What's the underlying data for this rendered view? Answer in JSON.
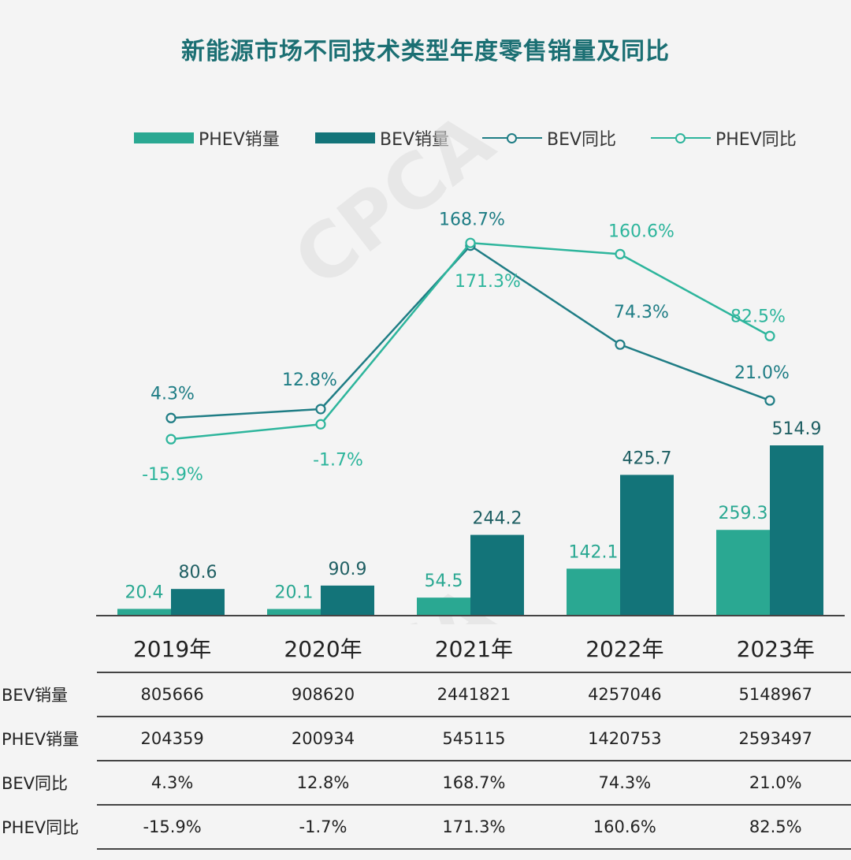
{
  "chart_data": {
    "type": "bar",
    "title": "新能源市场不同技术类型年度零售销量及同比",
    "categories": [
      "2019年",
      "2020年",
      "2021年",
      "2022年",
      "2023年"
    ],
    "series": [
      {
        "name": "PHEV销量",
        "kind": "bar",
        "color": "#2aa892",
        "values": [
          20.4,
          20.1,
          54.5,
          142.1,
          259.3
        ],
        "labels": [
          "20.4",
          "20.1",
          "54.5",
          "142.1",
          "259.3"
        ]
      },
      {
        "name": "BEV销量",
        "kind": "bar",
        "color": "#137479",
        "values": [
          80.6,
          90.9,
          244.2,
          425.7,
          514.9
        ],
        "labels": [
          "80.6",
          "90.9",
          "244.2",
          "425.7",
          "514.9"
        ]
      },
      {
        "name": "BEV同比",
        "kind": "line",
        "color": "#1f7d85",
        "values": [
          4.3,
          12.8,
          168.7,
          74.3,
          21.0
        ],
        "labels": [
          "4.3%",
          "12.8%",
          "168.7%",
          "74.3%",
          "21.0%"
        ]
      },
      {
        "name": "PHEV同比",
        "kind": "line",
        "color": "#2db59c",
        "values": [
          -15.9,
          -1.7,
          171.3,
          160.6,
          82.5
        ],
        "labels": [
          "-15.9%",
          "-1.7%",
          "171.3%",
          "160.6%",
          "82.5%"
        ]
      }
    ],
    "legend_order": [
      "PHEV销量",
      "BEV销量",
      "BEV同比",
      "PHEV同比"
    ],
    "legend_position": "top",
    "grid": false,
    "table": {
      "header": [
        "2019年",
        "2020年",
        "2021年",
        "2022年",
        "2023年"
      ],
      "rows": [
        {
          "label": "BEV销量",
          "cells": [
            "805666",
            "908620",
            "2441821",
            "4257046",
            "5148967"
          ]
        },
        {
          "label": "PHEV销量",
          "cells": [
            "204359",
            "200934",
            "545115",
            "1420753",
            "2593497"
          ]
        },
        {
          "label": "BEV同比",
          "cells": [
            "4.3%",
            "12.8%",
            "168.7%",
            "74.3%",
            "21.0%"
          ]
        },
        {
          "label": "PHEV同比",
          "cells": [
            "-15.9%",
            "-1.7%",
            "171.3%",
            "160.6%",
            "82.5%"
          ]
        }
      ]
    }
  },
  "watermark": "CPCA"
}
